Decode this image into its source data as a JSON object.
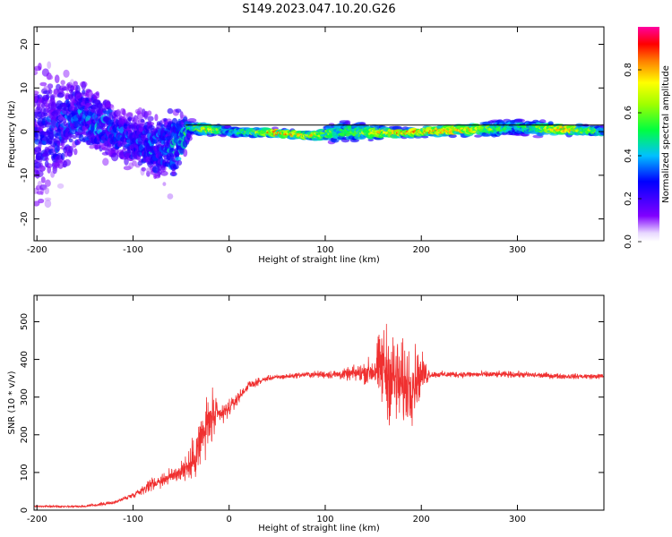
{
  "title": "S149.2023.047.10.20.G26",
  "colors": {
    "snr_line": "#f03030",
    "axis": "#000000",
    "ridge": "#000000"
  },
  "chart_data": [
    {
      "type": "heatmap",
      "xlabel": "Height of straight line (km)",
      "ylabel": "Frequency (Hz)",
      "xlim": [
        -203,
        390
      ],
      "ylim": [
        -25,
        24
      ],
      "x_ticks": [
        -200,
        -100,
        0,
        100,
        200,
        300
      ],
      "y_ticks": [
        -20,
        -10,
        0,
        10,
        20
      ],
      "colorbar": {
        "label": "Normalized spectral amplitude",
        "range": [
          0,
          1
        ],
        "ticks": [
          0.0,
          0.2,
          0.4,
          0.6,
          0.8
        ],
        "colormap": "rainbow (purple → blue → cyan → green → yellow → red → magenta)"
      },
      "ridge_segments": [
        {
          "x": [
            -45,
            390
          ],
          "freq": 1.5
        }
      ],
      "amplitude_profile": [
        {
          "x": -200,
          "freq_center": 0,
          "spread": 22,
          "amp": 0.25
        },
        {
          "x": -150,
          "freq_center": 3,
          "spread": 10,
          "amp": 0.35
        },
        {
          "x": -100,
          "freq_center": -2,
          "spread": 8,
          "amp": 0.3
        },
        {
          "x": -60,
          "freq_center": -4,
          "spread": 12,
          "amp": 0.35
        },
        {
          "x": -40,
          "freq_center": 1,
          "spread": 2,
          "amp": 0.55
        },
        {
          "x": -20,
          "freq_center": 0.5,
          "spread": 1.5,
          "amp": 0.9
        },
        {
          "x": 0,
          "freq_center": 0,
          "spread": 1.5,
          "amp": 0.5
        },
        {
          "x": 50,
          "freq_center": -0.3,
          "spread": 1.2,
          "amp": 0.95
        },
        {
          "x": 85,
          "freq_center": -1,
          "spread": 1.2,
          "amp": 0.85
        },
        {
          "x": 120,
          "freq_center": 0,
          "spread": 3,
          "amp": 0.6
        },
        {
          "x": 180,
          "freq_center": -0.3,
          "spread": 1.2,
          "amp": 0.95
        },
        {
          "x": 250,
          "freq_center": 0.5,
          "spread": 1.8,
          "amp": 0.9
        },
        {
          "x": 300,
          "freq_center": 1,
          "spread": 2.5,
          "amp": 0.5
        },
        {
          "x": 350,
          "freq_center": 0.5,
          "spread": 1.5,
          "amp": 0.95
        },
        {
          "x": 390,
          "freq_center": 0,
          "spread": 1.5,
          "amp": 0.6
        }
      ]
    },
    {
      "type": "line",
      "xlabel": "Height of straight line (km)",
      "ylabel": "SNR (10 * v/v)",
      "xlim": [
        -203,
        390
      ],
      "ylim": [
        0,
        570
      ],
      "x_ticks": [
        -200,
        -100,
        0,
        100,
        200,
        300
      ],
      "y_ticks": [
        0,
        100,
        200,
        300,
        400,
        500
      ],
      "series": [
        {
          "x": [
            -200,
            -150,
            -120,
            -100,
            -80,
            -60,
            -40,
            -30,
            -20,
            -10,
            0,
            10,
            20,
            40,
            60,
            80,
            100,
            120,
            140,
            150,
            160,
            170,
            180,
            190,
            200,
            210,
            250,
            300,
            350,
            390
          ],
          "y": [
            10,
            10,
            20,
            40,
            70,
            90,
            120,
            180,
            240,
            250,
            270,
            300,
            330,
            350,
            355,
            360,
            360,
            360,
            365,
            370,
            380,
            350,
            330,
            340,
            360,
            360,
            360,
            360,
            355,
            355
          ],
          "noise": [
            3,
            5,
            6,
            10,
            25,
            30,
            60,
            120,
            110,
            50,
            30,
            20,
            15,
            10,
            10,
            10,
            15,
            20,
            40,
            60,
            170,
            180,
            160,
            150,
            80,
            12,
            12,
            12,
            10,
            10
          ]
        }
      ]
    }
  ]
}
